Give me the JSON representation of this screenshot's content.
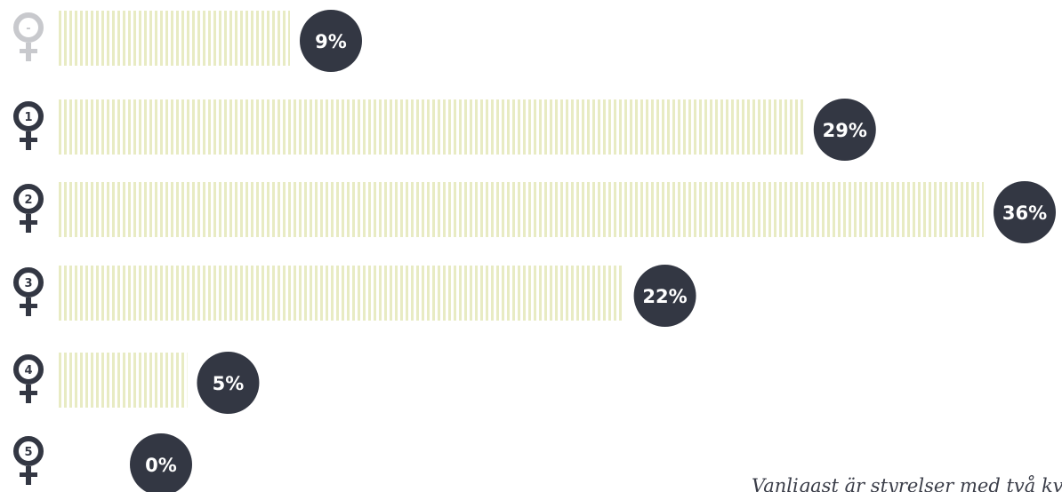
{
  "chart_data": {
    "type": "bar",
    "orientation": "horizontal",
    "categories": [
      "-",
      "1",
      "2",
      "3",
      "4",
      "5"
    ],
    "values": [
      9,
      29,
      36,
      22,
      5,
      0
    ],
    "value_labels": [
      "9%",
      "29%",
      "36%",
      "22%",
      "5%",
      "0%"
    ],
    "unit": "%",
    "xlim": [
      0,
      36
    ],
    "grid": false,
    "legend": "none"
  },
  "caption": "Vanligast är styrelser med två kvinnor",
  "icon": "female-symbol-icon",
  "colors": {
    "bar": "#e8ebc3",
    "badge": "#333743",
    "icon": "#333743",
    "icon_muted": "#c8c9cd"
  }
}
